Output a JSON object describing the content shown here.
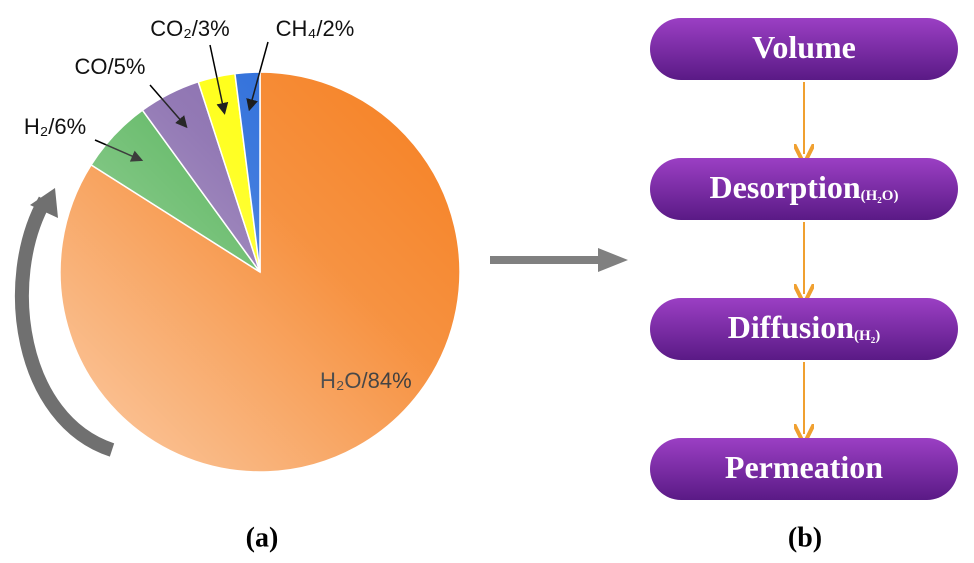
{
  "chart_data": {
    "type": "pie",
    "categories": [
      "H₂O/84%",
      "H₂/6%",
      "CO/5%",
      "CO₂/3%",
      "CH₄/2%"
    ],
    "values": [
      84,
      6,
      5,
      3,
      2
    ],
    "colors": [
      "#f57f20",
      "#4caf50",
      "#8062a8",
      "#ffff00",
      "#1f64d8"
    ]
  },
  "diagram": {
    "nodes": [
      {
        "label": "Volume"
      },
      {
        "label": "Desorption",
        "note": "(H₂O)"
      },
      {
        "label": "Diffusion",
        "note": "(H₂)"
      },
      {
        "label": "Permeation"
      }
    ]
  },
  "panel_labels": [
    "(a)",
    "(b)"
  ]
}
